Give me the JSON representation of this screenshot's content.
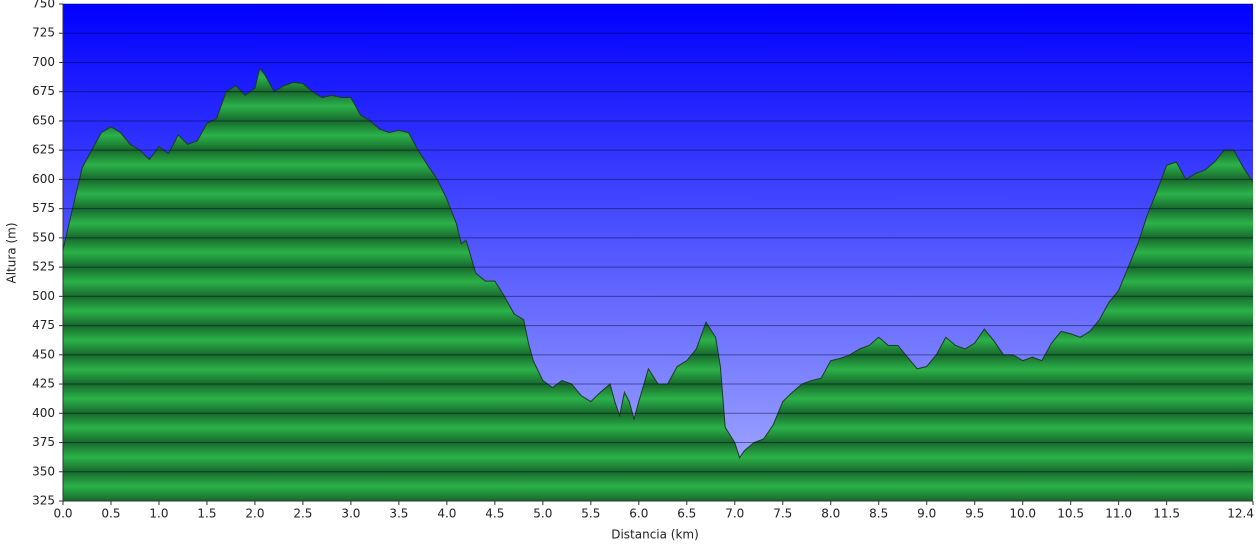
{
  "chart_data": {
    "type": "area",
    "x_label": "Distancia   (km)",
    "y_label": "Altura (m)",
    "color": "#22a03c",
    "grid": true,
    "xlim": [
      0,
      12.4
    ],
    "ylim": [
      325,
      750
    ],
    "xticks": [
      {
        "value": 0,
        "label": "0.0"
      },
      0.5,
      {
        "value": 1,
        "label": "1.0"
      },
      1.5,
      {
        "value": 2,
        "label": "2.0"
      },
      2.5,
      {
        "value": 3,
        "label": "3.0"
      },
      3.5,
      {
        "value": 4,
        "label": "4.0"
      },
      4.5,
      {
        "value": 5,
        "label": "5.0"
      },
      5.5,
      {
        "value": 6,
        "label": "6.0"
      },
      6.5,
      {
        "value": 7,
        "label": "7.0"
      },
      7.5,
      {
        "value": 8,
        "label": "8.0"
      },
      8.5,
      {
        "value": 9,
        "label": "9.0"
      },
      9.5,
      {
        "value": 10,
        "label": "10.0"
      },
      10.5,
      {
        "value": 11,
        "label": "11.0"
      },
      11.5,
      12.4
    ],
    "yticks": [
      325,
      350,
      375,
      400,
      425,
      450,
      475,
      500,
      525,
      550,
      575,
      600,
      625,
      650,
      675,
      700,
      725,
      750
    ],
    "x": [
      0,
      0.1,
      0.2,
      0.3,
      0.4,
      0.5,
      0.6,
      0.7,
      0.8,
      0.9,
      1.0,
      1.1,
      1.2,
      1.3,
      1.4,
      1.5,
      1.6,
      1.7,
      1.8,
      1.9,
      2.0,
      2.05,
      2.1,
      2.2,
      2.3,
      2.4,
      2.5,
      2.6,
      2.7,
      2.8,
      2.9,
      3.0,
      3.1,
      3.2,
      3.3,
      3.4,
      3.5,
      3.6,
      3.7,
      3.8,
      3.9,
      4.0,
      4.1,
      4.15,
      4.2,
      4.3,
      4.4,
      4.5,
      4.6,
      4.7,
      4.8,
      4.85,
      4.9,
      5.0,
      5.1,
      5.2,
      5.3,
      5.4,
      5.5,
      5.6,
      5.7,
      5.75,
      5.8,
      5.85,
      5.9,
      5.95,
      6.0,
      6.1,
      6.2,
      6.3,
      6.4,
      6.5,
      6.6,
      6.7,
      6.8,
      6.85,
      6.9,
      7.0,
      7.05,
      7.1,
      7.2,
      7.3,
      7.4,
      7.5,
      7.6,
      7.7,
      7.8,
      7.9,
      8.0,
      8.1,
      8.2,
      8.3,
      8.4,
      8.5,
      8.6,
      8.7,
      8.8,
      8.9,
      9.0,
      9.1,
      9.2,
      9.3,
      9.4,
      9.5,
      9.6,
      9.7,
      9.8,
      9.9,
      10.0,
      10.1,
      10.2,
      10.3,
      10.4,
      10.5,
      10.6,
      10.7,
      10.8,
      10.9,
      11.0,
      11.1,
      11.2,
      11.3,
      11.4,
      11.5,
      11.6,
      11.7,
      11.8,
      11.9,
      12.0,
      12.1,
      12.2,
      12.3,
      12.4
    ],
    "values": [
      540,
      575,
      610,
      625,
      640,
      645,
      640,
      630,
      625,
      617,
      628,
      622,
      638,
      630,
      633,
      648,
      652,
      675,
      680,
      672,
      678,
      695,
      690,
      675,
      680,
      683,
      682,
      675,
      670,
      672,
      670,
      670,
      655,
      650,
      643,
      640,
      642,
      640,
      625,
      612,
      600,
      583,
      562,
      545,
      548,
      520,
      513,
      513,
      500,
      485,
      480,
      460,
      445,
      428,
      422,
      428,
      425,
      415,
      410,
      418,
      425,
      410,
      398,
      418,
      410,
      395,
      410,
      438,
      425,
      425,
      440,
      445,
      455,
      478,
      465,
      440,
      388,
      375,
      362,
      368,
      375,
      378,
      390,
      410,
      418,
      425,
      428,
      430,
      445,
      447,
      450,
      455,
      458,
      465,
      458,
      458,
      448,
      438,
      440,
      450,
      465,
      458,
      455,
      460,
      472,
      462,
      450,
      450,
      445,
      448,
      445,
      460,
      470,
      468,
      465,
      470,
      480,
      495,
      505,
      525,
      545,
      570,
      590,
      612,
      615,
      600,
      605,
      608,
      615,
      625,
      625,
      610,
      598
    ]
  }
}
